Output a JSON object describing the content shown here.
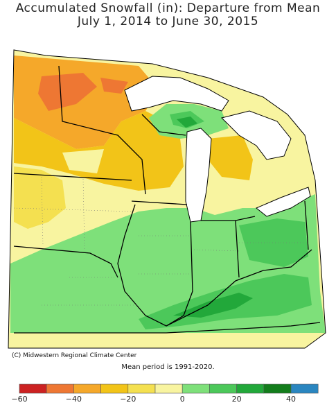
{
  "title": {
    "line1": "Accumulated Snowfall (in): Departure from Mean",
    "line2": "July 1, 2014 to June 30, 2015"
  },
  "credit": "(C) Midwestern Regional Climate Center",
  "note": "Mean period is 1991-2020.",
  "legend": {
    "colors": [
      "#cc2222",
      "#ee7733",
      "#f5a82a",
      "#f2c418",
      "#f4e050",
      "#f8f4a0",
      "#7ee07a",
      "#4cc85a",
      "#22a83a",
      "#137d1c",
      "#2a86c0"
    ],
    "ticks": [
      "-60",
      "-40",
      "-20",
      "0",
      "20",
      "40"
    ]
  },
  "colors": {
    "water": "#ffffff",
    "border": "#000000",
    "outside": "#ffffff"
  }
}
